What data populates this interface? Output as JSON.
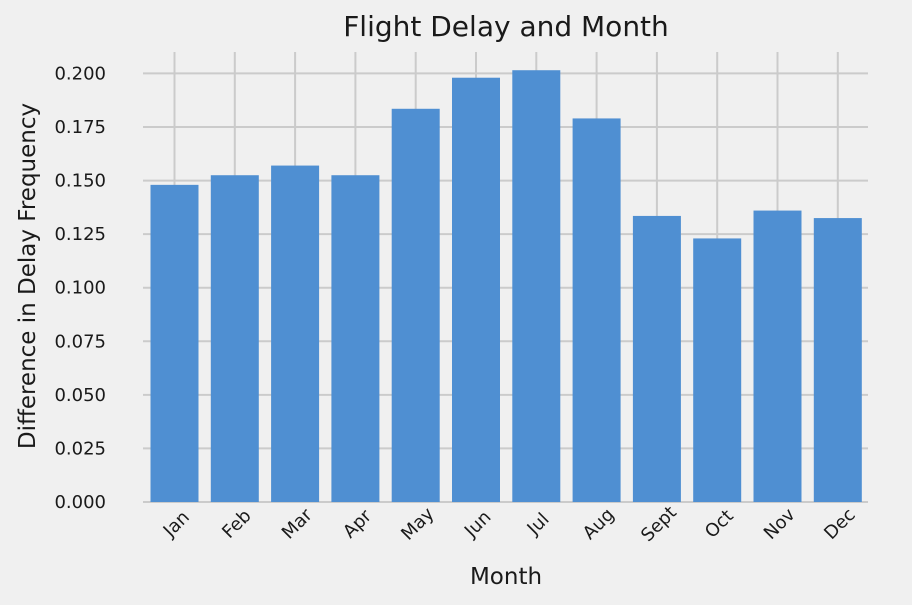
{
  "chart_data": {
    "type": "bar",
    "title": "Flight Delay and Month",
    "xlabel": "Month",
    "ylabel": "Difference in Delay Frequency",
    "categories": [
      "Jan",
      "Feb",
      "Mar",
      "Apr",
      "May",
      "Jun",
      "Jul",
      "Aug",
      "Sept",
      "Oct",
      "Nov",
      "Dec"
    ],
    "values": [
      0.148,
      0.1525,
      0.157,
      0.1525,
      0.1835,
      0.198,
      0.2015,
      0.179,
      0.1335,
      0.123,
      0.136,
      0.1325
    ],
    "ylim": [
      0,
      0.21
    ],
    "yticks": [
      "0.000",
      "0.025",
      "0.050",
      "0.075",
      "0.100",
      "0.125",
      "0.150",
      "0.175",
      "0.200"
    ],
    "ytick_values": [
      0,
      0.025,
      0.05,
      0.075,
      0.1,
      0.125,
      0.15,
      0.175,
      0.2
    ],
    "grid": true,
    "legend": "none",
    "bar_color": "#4f8fd2",
    "background_color": "#f0f0f0",
    "grid_color": "#cbcbcb"
  }
}
